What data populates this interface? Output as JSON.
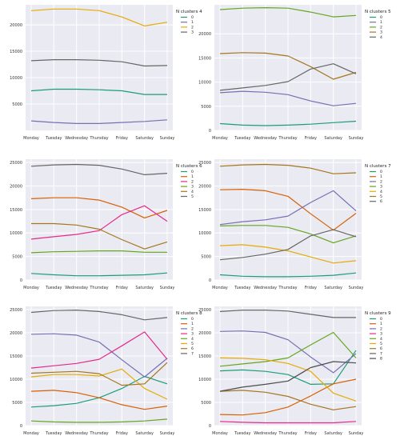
{
  "chart_data": [
    {
      "type": "line",
      "legend_title": "N clusters 4",
      "legend_placement": "right-outside-top",
      "grid": true,
      "categories": [
        "Monday",
        "Tuesday",
        "Wednesday",
        "Thursday",
        "Friday",
        "Saturday",
        "Sunday"
      ],
      "yticks": [
        5000,
        10000,
        15000,
        20000
      ],
      "ylim": [
        0,
        23800
      ],
      "series": [
        {
          "name": "0",
          "color": "#1b9e77",
          "values": [
            7500,
            7800,
            7800,
            7700,
            7500,
            6800,
            6800
          ]
        },
        {
          "name": "1",
          "color": "#7570b3",
          "values": [
            1800,
            1500,
            1300,
            1300,
            1500,
            1700,
            2000
          ]
        },
        {
          "name": "2",
          "color": "#e6ab02",
          "values": [
            22700,
            23000,
            23000,
            22700,
            21500,
            19800,
            20500
          ]
        },
        {
          "name": "3",
          "color": "#666666",
          "values": [
            13200,
            13400,
            13400,
            13300,
            13000,
            12200,
            12300
          ]
        }
      ]
    },
    {
      "type": "line",
      "legend_title": "N clusters 5",
      "legend_placement": "right-outside-top",
      "grid": true,
      "categories": [
        "Monday",
        "Tuesday",
        "Wednesday",
        "Thursday",
        "Friday",
        "Saturday",
        "Sunday"
      ],
      "yticks": [
        0,
        5000,
        10000,
        15000,
        20000
      ],
      "ylim": [
        0,
        26000
      ],
      "series": [
        {
          "name": "0",
          "color": "#1b9e77",
          "values": [
            1400,
            1100,
            1000,
            1100,
            1300,
            1600,
            1900
          ]
        },
        {
          "name": "1",
          "color": "#7570b3",
          "values": [
            7800,
            8100,
            7900,
            7400,
            6100,
            5100,
            5600
          ]
        },
        {
          "name": "2",
          "color": "#66a61e",
          "values": [
            25000,
            25300,
            25400,
            25300,
            24500,
            23500,
            23800
          ]
        },
        {
          "name": "3",
          "color": "#a6761d",
          "values": [
            15900,
            16100,
            16000,
            15400,
            13200,
            10600,
            12000
          ]
        },
        {
          "name": "4",
          "color": "#666666",
          "values": [
            8300,
            8800,
            9300,
            10100,
            12700,
            13800,
            11700
          ]
        }
      ]
    },
    {
      "type": "line",
      "legend_title": "N clusters 6",
      "legend_placement": "right-outside-top",
      "grid": true,
      "categories": [
        "Monday",
        "Tuesday",
        "Wednesday",
        "Thursday",
        "Friday",
        "Saturday",
        "Sunday"
      ],
      "yticks": [
        0,
        5000,
        10000,
        15000,
        20000,
        25000
      ],
      "ylim": [
        0,
        25700
      ],
      "series": [
        {
          "name": "0",
          "color": "#1b9e77",
          "values": [
            1400,
            1100,
            900,
            900,
            1000,
            1100,
            1500
          ]
        },
        {
          "name": "1",
          "color": "#d95f02",
          "values": [
            17300,
            17500,
            17500,
            17000,
            15500,
            13200,
            14800
          ]
        },
        {
          "name": "2",
          "color": "#e7298a",
          "values": [
            8700,
            9200,
            9700,
            10500,
            13900,
            15800,
            12500
          ]
        },
        {
          "name": "3",
          "color": "#66a61e",
          "values": [
            5800,
            6000,
            6100,
            6200,
            6200,
            5900,
            5900
          ]
        },
        {
          "name": "4",
          "color": "#a6761d",
          "values": [
            12000,
            12000,
            11700,
            10800,
            8600,
            6600,
            8100
          ]
        },
        {
          "name": "5",
          "color": "#666666",
          "values": [
            24200,
            24500,
            24600,
            24400,
            23600,
            22400,
            22700
          ]
        }
      ]
    },
    {
      "type": "line",
      "legend_title": "N clusters 7",
      "legend_placement": "right-outside-top",
      "grid": true,
      "categories": [
        "Monday",
        "Tuesday",
        "Wednesday",
        "Thursday",
        "Friday",
        "Saturday",
        "Sunday"
      ],
      "yticks": [
        0,
        5000,
        10000,
        15000,
        20000,
        25000
      ],
      "ylim": [
        0,
        25700
      ],
      "series": [
        {
          "name": "0",
          "color": "#1b9e77",
          "values": [
            1100,
            800,
            700,
            700,
            800,
            1000,
            1500
          ]
        },
        {
          "name": "1",
          "color": "#d95f02",
          "values": [
            19200,
            19300,
            19000,
            17800,
            14100,
            10600,
            14200
          ]
        },
        {
          "name": "2",
          "color": "#7570b3",
          "values": [
            11800,
            12400,
            12800,
            13600,
            16500,
            19000,
            14700
          ]
        },
        {
          "name": "3",
          "color": "#66a61e",
          "values": [
            11500,
            11600,
            11600,
            11200,
            9800,
            7900,
            9400
          ]
        },
        {
          "name": "4",
          "color": "#e6ab02",
          "values": [
            7300,
            7500,
            7000,
            6200,
            4900,
            3600,
            4100
          ]
        },
        {
          "name": "5",
          "color": "#a6761d",
          "values": [
            24200,
            24500,
            24600,
            24400,
            23800,
            22600,
            22800
          ]
        },
        {
          "name": "6",
          "color": "#666666",
          "values": [
            4300,
            4800,
            5500,
            6500,
            9400,
            10700,
            9200
          ]
        }
      ]
    },
    {
      "type": "line",
      "legend_title": "N clusters 8",
      "legend_placement": "right-outside-top",
      "grid": true,
      "categories": [
        "Monday",
        "Tuesday",
        "Wednesday",
        "Thursday",
        "Friday",
        "Saturday",
        "Sunday"
      ],
      "yticks": [
        0,
        5000,
        10000,
        15000,
        20000,
        25000
      ],
      "ylim": [
        0,
        25700
      ],
      "series": [
        {
          "name": "0",
          "color": "#1b9e77",
          "values": [
            4000,
            4300,
            4800,
            6000,
            8000,
            10600,
            9000
          ]
        },
        {
          "name": "1",
          "color": "#d95f02",
          "values": [
            7400,
            7600,
            7100,
            6000,
            4500,
            3500,
            4200
          ]
        },
        {
          "name": "2",
          "color": "#7570b3",
          "values": [
            19700,
            19800,
            19500,
            18000,
            14200,
            10500,
            14500
          ]
        },
        {
          "name": "3",
          "color": "#e7298a",
          "values": [
            12400,
            12900,
            13400,
            14300,
            17200,
            20200,
            14300
          ]
        },
        {
          "name": "4",
          "color": "#66a61e",
          "values": [
            1000,
            800,
            700,
            700,
            800,
            1000,
            1400
          ]
        },
        {
          "name": "5",
          "color": "#e6ab02",
          "values": [
            10500,
            11000,
            11000,
            10700,
            12200,
            8000,
            5700
          ]
        },
        {
          "name": "6",
          "color": "#a6761d",
          "values": [
            11300,
            11500,
            11700,
            11200,
            8700,
            9000,
            13600
          ]
        },
        {
          "name": "7",
          "color": "#666666",
          "values": [
            24400,
            24800,
            24900,
            24600,
            23900,
            22800,
            23300
          ]
        }
      ]
    },
    {
      "type": "line",
      "legend_title": "N clusters 9",
      "legend_placement": "right-outside-top",
      "grid": true,
      "categories": [
        "Monday",
        "Tuesday",
        "Wednesday",
        "Thursday",
        "Friday",
        "Saturday",
        "Sunday"
      ],
      "yticks": [
        0,
        5000,
        10000,
        15000,
        20000,
        25000
      ],
      "ylim": [
        0,
        25700
      ],
      "series": [
        {
          "name": "0",
          "color": "#1b9e77",
          "values": [
            11800,
            12000,
            11700,
            11000,
            8900,
            9000,
            16200
          ]
        },
        {
          "name": "1",
          "color": "#d95f02",
          "values": [
            2400,
            2300,
            2800,
            4000,
            6400,
            9000,
            10000
          ]
        },
        {
          "name": "2",
          "color": "#7570b3",
          "values": [
            20300,
            20400,
            20100,
            18500,
            14800,
            11400,
            15500
          ]
        },
        {
          "name": "3",
          "color": "#e7298a",
          "values": [
            900,
            700,
            600,
            600,
            600,
            600,
            900
          ]
        },
        {
          "name": "4",
          "color": "#66a61e",
          "values": [
            12800,
            13300,
            13800,
            14600,
            17400,
            20100,
            14600
          ]
        },
        {
          "name": "5",
          "color": "#e6ab02",
          "values": [
            14600,
            14500,
            14200,
            13400,
            11700,
            7000,
            5300
          ]
        },
        {
          "name": "6",
          "color": "#a6761d",
          "values": [
            7400,
            7600,
            7200,
            6300,
            4600,
            3400,
            4100
          ]
        },
        {
          "name": "7",
          "color": "#666666",
          "values": [
            24600,
            24900,
            24900,
            24700,
            24000,
            23300,
            23300
          ]
        },
        {
          "name": "8",
          "color": "#4d4d4d",
          "values": [
            7400,
            8300,
            8900,
            9600,
            12500,
            13800,
            13500
          ]
        }
      ]
    }
  ]
}
